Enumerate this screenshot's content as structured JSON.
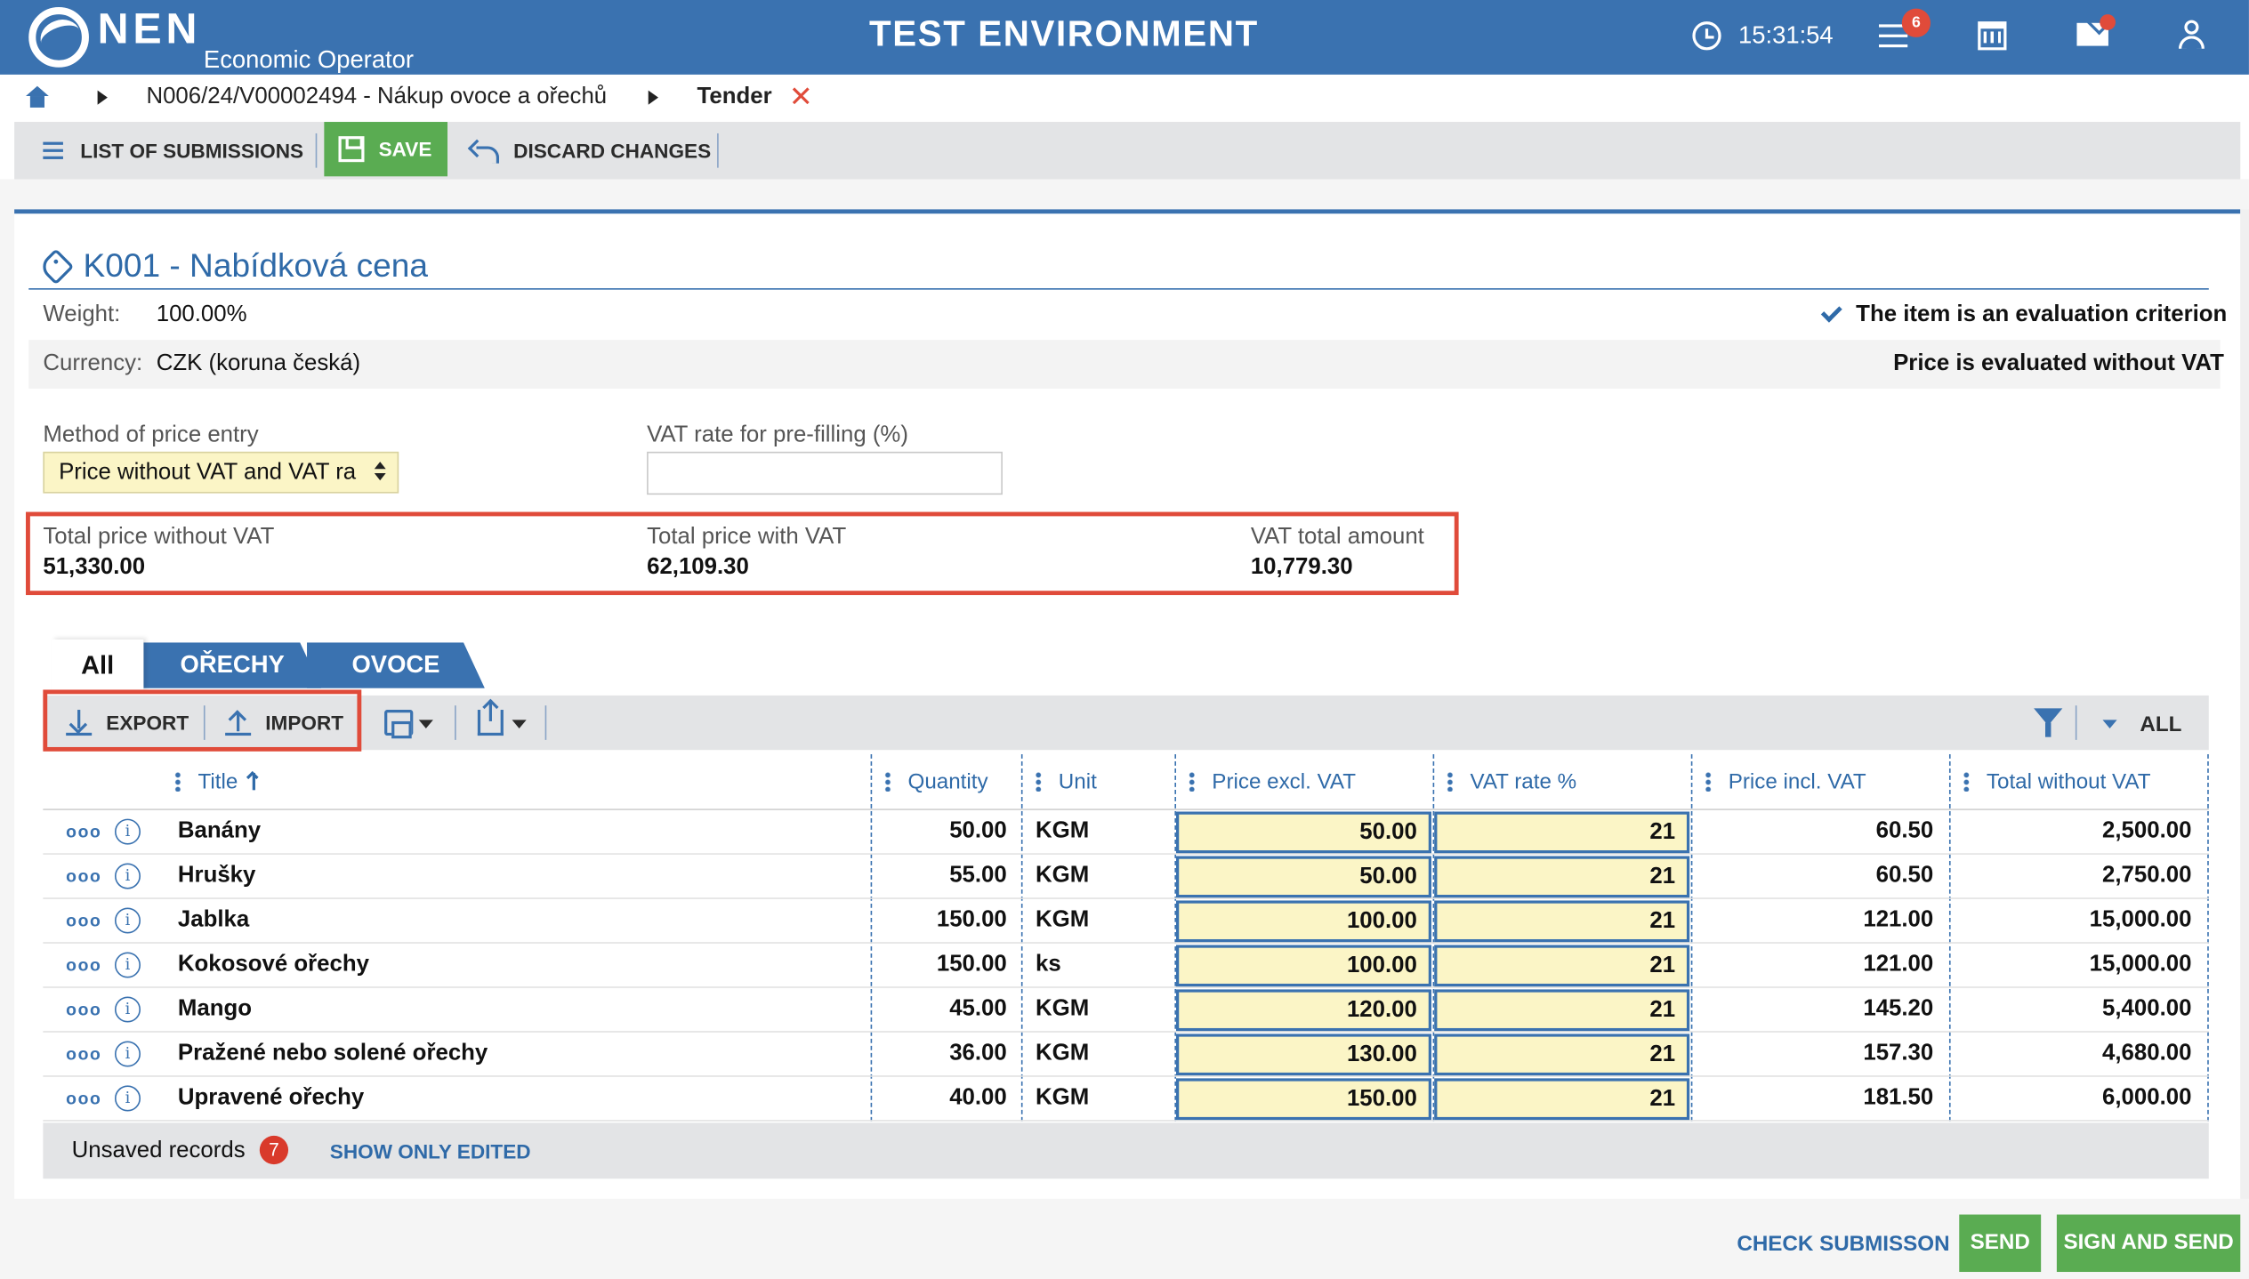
{
  "header": {
    "logo_text": "NEN",
    "logo_subtitle": "Economic Operator",
    "environment_title": "TEST ENVIRONMENT",
    "clock_time": "15:31:54",
    "notifications_count": "6"
  },
  "breadcrumb": {
    "item_1": "N006/24/V00002494 - Nákup ovoce a ořechů",
    "item_2": "Tender"
  },
  "toolbar": {
    "list_label": "LIST OF SUBMISSIONS",
    "save_label": "SAVE",
    "discard_label": "DISCARD CHANGES"
  },
  "section": {
    "title": "K001 - Nabídková cena",
    "weight_label": "Weight:",
    "weight_value": "100.00%",
    "currency_label": "Currency:",
    "currency_value": "CZK (koruna česká)",
    "criterion_text": "The item is an evaluation criterion",
    "evaluated_text": "Price is evaluated without VAT",
    "method_label": "Method of price entry",
    "method_value": "Price without VAT and VAT ra",
    "vat_prefill_label": "VAT rate for pre-filling (%)",
    "vat_prefill_value": ""
  },
  "totals": {
    "without_vat_label": "Total price without VAT",
    "without_vat_value": "51,330.00",
    "with_vat_label": "Total price with VAT",
    "with_vat_value": "62,109.30",
    "vat_amount_label": "VAT total amount",
    "vat_amount_value": "10,779.30"
  },
  "tabs": [
    "All",
    "OŘECHY",
    "OVOCE"
  ],
  "grid_toolbar": {
    "export_label": "EXPORT",
    "import_label": "IMPORT",
    "filter_scope": "ALL"
  },
  "table": {
    "columns": [
      "Title",
      "Quantity",
      "Unit",
      "Price excl. VAT",
      "VAT rate %",
      "Price incl. VAT",
      "Total without VAT"
    ],
    "rows": [
      {
        "title": "Banány",
        "quantity": "50.00",
        "unit": "KGM",
        "price_excl": "50.00",
        "vat_rate": "21",
        "price_incl": "60.50",
        "total": "2,500.00"
      },
      {
        "title": "Hrušky",
        "quantity": "55.00",
        "unit": "KGM",
        "price_excl": "50.00",
        "vat_rate": "21",
        "price_incl": "60.50",
        "total": "2,750.00"
      },
      {
        "title": "Jablka",
        "quantity": "150.00",
        "unit": "KGM",
        "price_excl": "100.00",
        "vat_rate": "21",
        "price_incl": "121.00",
        "total": "15,000.00"
      },
      {
        "title": "Kokosové ořechy",
        "quantity": "150.00",
        "unit": "ks",
        "price_excl": "100.00",
        "vat_rate": "21",
        "price_incl": "121.00",
        "total": "15,000.00"
      },
      {
        "title": "Mango",
        "quantity": "45.00",
        "unit": "KGM",
        "price_excl": "120.00",
        "vat_rate": "21",
        "price_incl": "145.20",
        "total": "5,400.00"
      },
      {
        "title": "Pražené nebo solené ořechy",
        "quantity": "36.00",
        "unit": "KGM",
        "price_excl": "130.00",
        "vat_rate": "21",
        "price_incl": "157.30",
        "total": "4,680.00"
      },
      {
        "title": "Upravené ořechy",
        "quantity": "40.00",
        "unit": "KGM",
        "price_excl": "150.00",
        "vat_rate": "21",
        "price_incl": "181.50",
        "total": "6,000.00"
      }
    ]
  },
  "grid_footer": {
    "unsaved_label": "Unsaved records",
    "unsaved_count": "7",
    "show_edited_label": "SHOW ONLY EDITED"
  },
  "actions": {
    "check_label": "CHECK SUBMISSON",
    "send_label": "SEND",
    "sign_send_label": "SIGN AND SEND"
  },
  "colors": {
    "brand_blue": "#3a72b0",
    "save_green": "#5aac52",
    "highlight_red": "#e04b3a",
    "editable_yellow": "#fbf5c6"
  },
  "icons": [
    "clock-icon",
    "menu-icon",
    "calendar-icon",
    "mail-icon",
    "user-icon",
    "home-icon",
    "close-icon",
    "list-icon",
    "floppy-icon",
    "undo-icon",
    "tag-icon",
    "check-icon",
    "download-icon",
    "upload-icon",
    "printer-icon",
    "share-icon",
    "filter-icon",
    "info-icon"
  ]
}
